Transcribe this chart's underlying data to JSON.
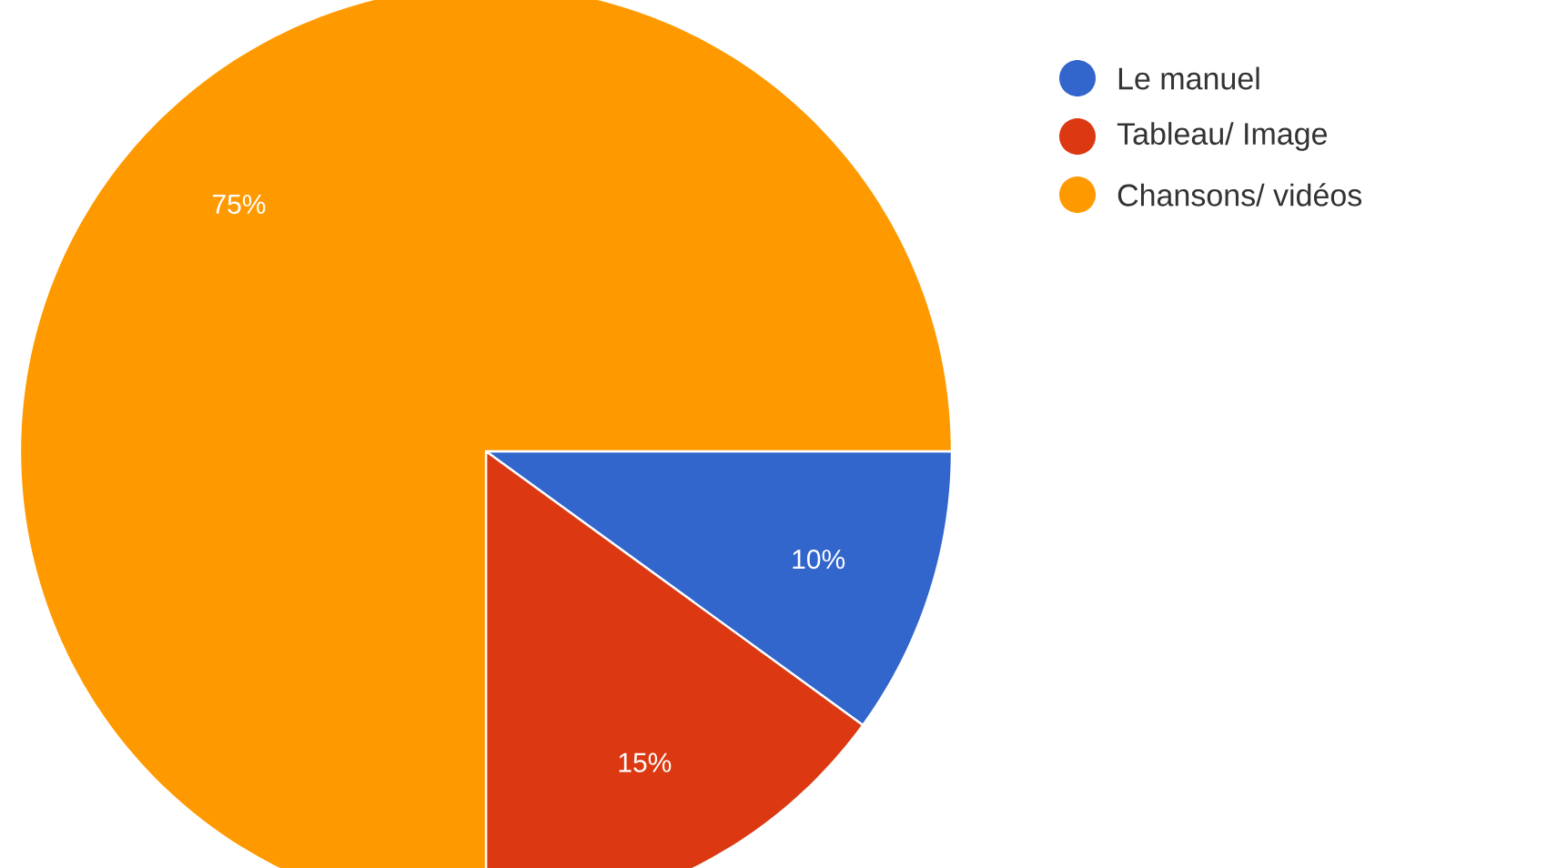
{
  "chart_data": {
    "type": "pie",
    "categories": [
      "Le manuel",
      "Tableau/ Image",
      "Chansons/ vidéos"
    ],
    "values": [
      10,
      15,
      75
    ],
    "colors": [
      "#3366cc",
      "#dc3912",
      "#ff9900"
    ],
    "value_labels": [
      "10%",
      "15%",
      "75%"
    ],
    "legend": "top right"
  }
}
